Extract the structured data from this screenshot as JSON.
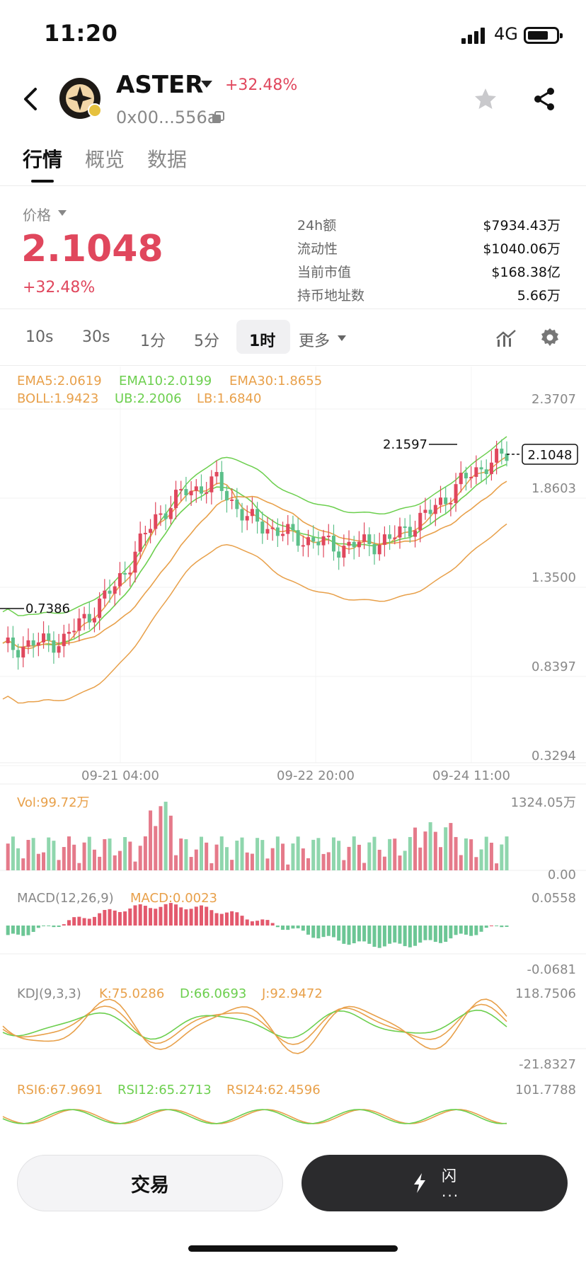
{
  "status_bar": {
    "time": "11:20",
    "network": "4G"
  },
  "header": {
    "token": "ASTER",
    "change": "+32.48%",
    "address": "0x00...556a",
    "icons": [
      "back-icon",
      "star-icon",
      "share-icon",
      "copy-icon"
    ]
  },
  "tabs": [
    {
      "label": "行情",
      "active": true
    },
    {
      "label": "概览",
      "active": false
    },
    {
      "label": "数据",
      "active": false
    }
  ],
  "price": {
    "label": "价格",
    "value": "2.1048",
    "change": "+32.48%"
  },
  "stats": [
    {
      "label": "24h额",
      "value": "$7934.43万"
    },
    {
      "label": "流动性",
      "value": "$1040.06万"
    },
    {
      "label": "当前市值",
      "value": "$168.38亿"
    },
    {
      "label": "持币地址数",
      "value": "5.66万"
    }
  ],
  "intervals": [
    {
      "label": "10s",
      "active": false
    },
    {
      "label": "30s",
      "active": false
    },
    {
      "label": "1分",
      "active": false
    },
    {
      "label": "5分",
      "active": false
    },
    {
      "label": "1时",
      "active": true
    },
    {
      "label": "更多",
      "active": false
    }
  ],
  "colors": {
    "up": "#e0475d",
    "down": "#5cc08a",
    "ema_orange": "#e8a04a",
    "ema_green": "#6ccf4e",
    "boll_orange": "#e8a04a",
    "text_grey": "#888888"
  },
  "chart_data": {
    "type": "candlestick",
    "main": {
      "legend_line1": [
        {
          "text": "EMA5:2.0619",
          "color": "#e8a04a"
        },
        {
          "text": "EMA10:2.0199",
          "color": "#6ccf4e"
        },
        {
          "text": "EMA30:1.8655",
          "color": "#e8a04a"
        }
      ],
      "legend_line2": [
        {
          "text": "BOLL:1.9423",
          "color": "#e8a04a"
        },
        {
          "text": "UB:2.2006",
          "color": "#6ccf4e"
        },
        {
          "text": "LB:1.6840",
          "color": "#e8a04a"
        }
      ],
      "y_ticks": [
        "2.3707",
        "1.8603",
        "1.3500",
        "0.8397",
        "0.3294"
      ],
      "y_range": [
        0.3294,
        2.3707
      ],
      "current_price": "2.1048",
      "high_label": "2.1597",
      "low_label": "0.7386",
      "x_ticks": [
        "09-21 04:00",
        "09-22 20:00",
        "09-24 11:00"
      ]
    },
    "volume": {
      "label": "Vol:99.72万",
      "max_label": "1324.05万",
      "min_label": "0.00"
    },
    "macd": {
      "legend": [
        {
          "text": "MACD(12,26,9)",
          "color": "#888888"
        },
        {
          "text": "MACD:0.0023",
          "color": "#e8a04a"
        }
      ],
      "max_label": "0.0558",
      "min_label": "-0.0681"
    },
    "kdj": {
      "legend": [
        {
          "text": "KDJ(9,3,3)",
          "color": "#888888"
        },
        {
          "text": "K:75.0286",
          "color": "#e8a04a"
        },
        {
          "text": "D:66.0693",
          "color": "#6ccf4e"
        },
        {
          "text": "J:92.9472",
          "color": "#e8a04a"
        }
      ],
      "max_label": "118.7506",
      "min_label": "-21.8327"
    },
    "rsi": {
      "legend": [
        {
          "text": "RSI6:67.9691",
          "color": "#e8a04a"
        },
        {
          "text": "RSI12:65.2713",
          "color": "#6ccf4e"
        },
        {
          "text": "RSI24:62.4596",
          "color": "#e8a04a"
        }
      ],
      "max_label": "101.7788"
    }
  },
  "actions": {
    "trade": "交易",
    "flash": "闪",
    "flash_sub": "..."
  }
}
